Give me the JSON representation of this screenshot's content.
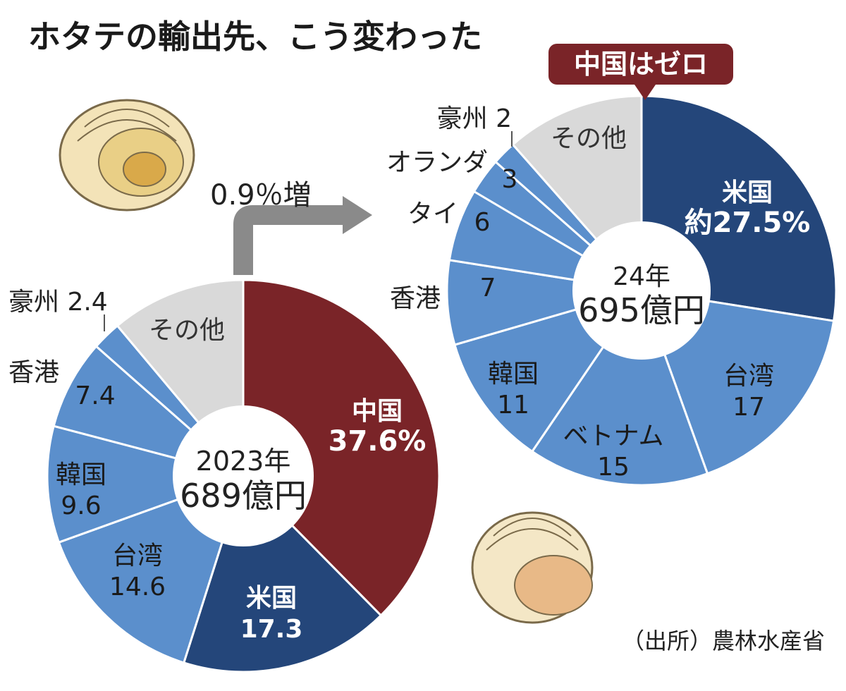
{
  "title": "ホタテの輸出先、こう変わった",
  "change_label": "0.9％増",
  "callout": "中国はゼロ",
  "source": "（出所）農林水産省",
  "colors": {
    "china": "#7a2428",
    "usa": "#24467a",
    "other_countries": "#5b8fcc",
    "sonota": "#d9d9d9",
    "separator": "#ffffff",
    "arrow": "#8a8a8a"
  },
  "chart_data": [
    {
      "type": "pie",
      "center_label": [
        "2023年",
        "689億円"
      ],
      "unit": "%",
      "slices": [
        {
          "key": "china",
          "lines": [
            "中国",
            "37.6%"
          ],
          "value": 37.6,
          "color_key": "china"
        },
        {
          "key": "usa",
          "lines": [
            "米国",
            "17.3"
          ],
          "value": 17.3,
          "color_key": "usa"
        },
        {
          "key": "taiwan",
          "lines": [
            "台湾",
            "14.6"
          ],
          "value": 14.6,
          "color_key": "other_countries"
        },
        {
          "key": "korea",
          "lines": [
            "韓国",
            "9.6"
          ],
          "value": 9.6,
          "color_key": "other_countries"
        },
        {
          "key": "hongkong",
          "lines": [
            "7.4"
          ],
          "outer_label": "香港",
          "value": 7.4,
          "color_key": "other_countries"
        },
        {
          "key": "australia",
          "lines": [],
          "outer_label": "豪州 2.4",
          "value": 2.4,
          "color_key": "other_countries"
        },
        {
          "key": "sonota",
          "lines": [
            "その他"
          ],
          "value": 11.1,
          "color_key": "sonota"
        }
      ]
    },
    {
      "type": "pie",
      "center_label": [
        "24年",
        "695億円"
      ],
      "unit": "%",
      "slices": [
        {
          "key": "usa",
          "lines": [
            "米国",
            "約27.5%"
          ],
          "value": 27.5,
          "color_key": "usa"
        },
        {
          "key": "taiwan",
          "lines": [
            "台湾",
            "17"
          ],
          "value": 17,
          "color_key": "other_countries"
        },
        {
          "key": "vietnam",
          "lines": [
            "ベトナム",
            "15"
          ],
          "value": 15,
          "color_key": "other_countries"
        },
        {
          "key": "korea",
          "lines": [
            "韓国",
            "11"
          ],
          "value": 11,
          "color_key": "other_countries"
        },
        {
          "key": "hongkong",
          "lines": [
            "7"
          ],
          "outer_label": "香港",
          "value": 7,
          "color_key": "other_countries"
        },
        {
          "key": "thailand",
          "lines": [
            "6"
          ],
          "outer_label": "タイ",
          "value": 6,
          "color_key": "other_countries"
        },
        {
          "key": "netherlands",
          "lines": [
            "3"
          ],
          "outer_label": "オランダ",
          "value": 3,
          "color_key": "other_countries"
        },
        {
          "key": "australia",
          "lines": [],
          "outer_label": "豪州 2",
          "value": 2,
          "color_key": "other_countries"
        },
        {
          "key": "sonota",
          "lines": [
            "その他"
          ],
          "value": 11.5,
          "color_key": "sonota"
        }
      ]
    }
  ]
}
